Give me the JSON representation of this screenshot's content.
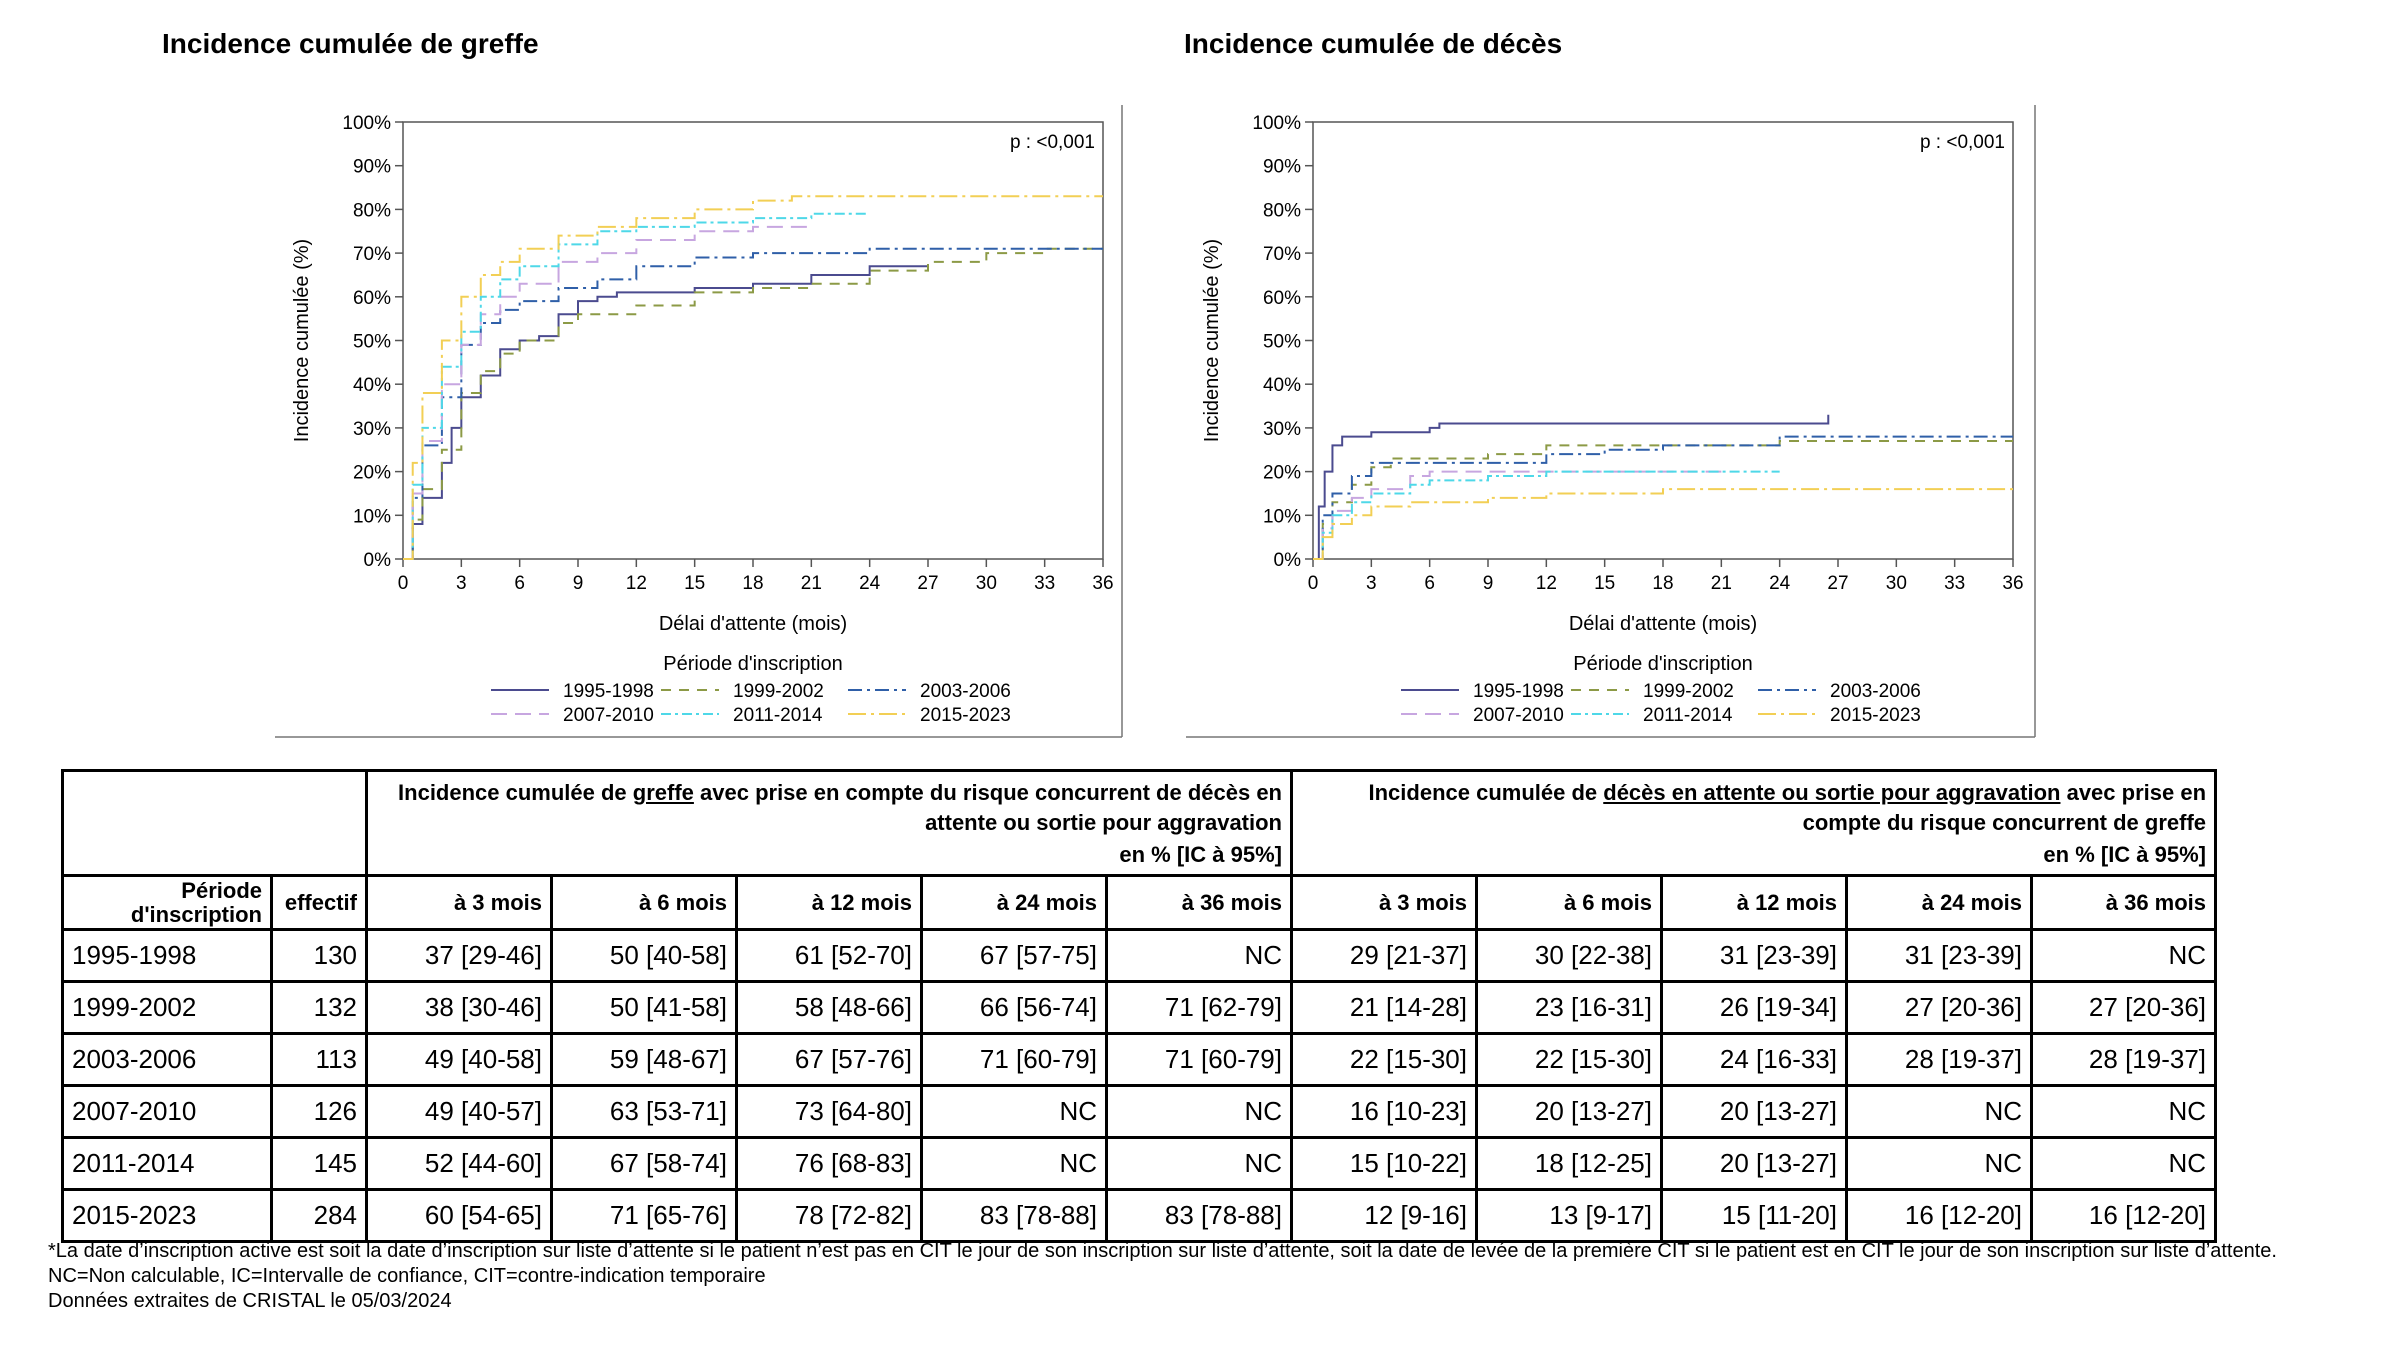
{
  "charts": [
    {
      "title": "Incidence cumulée de greffe",
      "pvalue": "p : <0,001",
      "ylabel": "Incidence cumulée (%)",
      "xlabel": "Délai d'attente (mois)",
      "legend_title": "Période d'inscription"
    },
    {
      "title": "Incidence cumulée de décès",
      "pvalue": "p : <0,001",
      "ylabel": "Incidence cumulée (%)",
      "xlabel": "Délai d'attente (mois)",
      "legend_title": "Période d'inscription"
    }
  ],
  "chart_data": [
    {
      "type": "line",
      "title": "Incidence cumulée de greffe",
      "xlabel": "Délai d'attente (mois)",
      "ylabel": "Incidence cumulée (%)",
      "xlim": [
        0,
        36
      ],
      "ylim": [
        0,
        100
      ],
      "xticks": [
        "0",
        "3",
        "6",
        "9",
        "12",
        "15",
        "18",
        "21",
        "24",
        "27",
        "30",
        "33",
        "36"
      ],
      "yticks": [
        "0%",
        "10%",
        "20%",
        "30%",
        "40%",
        "50%",
        "60%",
        "70%",
        "80%",
        "90%",
        "100%"
      ],
      "legend_position": "bottom",
      "series": [
        {
          "name": "1995-1998",
          "color": "#4b4b8f",
          "dash": "solid",
          "points": [
            [
              0,
              0
            ],
            [
              0.5,
              8
            ],
            [
              1,
              14
            ],
            [
              2,
              22
            ],
            [
              2.5,
              30
            ],
            [
              3,
              37
            ],
            [
              4,
              42
            ],
            [
              5,
              48
            ],
            [
              6,
              50
            ],
            [
              7,
              51
            ],
            [
              8,
              56
            ],
            [
              9,
              59
            ],
            [
              10,
              60
            ],
            [
              11,
              61
            ],
            [
              12,
              61
            ],
            [
              15,
              62
            ],
            [
              18,
              63
            ],
            [
              21,
              65
            ],
            [
              24,
              67
            ],
            [
              26,
              67
            ],
            [
              27,
              67
            ]
          ]
        },
        {
          "name": "1999-2002",
          "color": "#8c9a46",
          "dash": "10,8",
          "points": [
            [
              0,
              0
            ],
            [
              0.5,
              9
            ],
            [
              1,
              16
            ],
            [
              2,
              25
            ],
            [
              3,
              38
            ],
            [
              4,
              43
            ],
            [
              5,
              47
            ],
            [
              6,
              50
            ],
            [
              8,
              54
            ],
            [
              9,
              56
            ],
            [
              12,
              58
            ],
            [
              15,
              61
            ],
            [
              18,
              62
            ],
            [
              21,
              63
            ],
            [
              24,
              66
            ],
            [
              27,
              68
            ],
            [
              30,
              70
            ],
            [
              33,
              71
            ],
            [
              36,
              71
            ]
          ]
        },
        {
          "name": "2003-2006",
          "color": "#2f5fa8",
          "dash": "14,5,3,5",
          "points": [
            [
              0,
              0
            ],
            [
              0.5,
              14
            ],
            [
              1,
              26
            ],
            [
              2,
              37
            ],
            [
              3,
              49
            ],
            [
              4,
              54
            ],
            [
              5,
              57
            ],
            [
              6,
              59
            ],
            [
              8,
              62
            ],
            [
              10,
              64
            ],
            [
              12,
              67
            ],
            [
              15,
              69
            ],
            [
              18,
              70
            ],
            [
              21,
              70
            ],
            [
              24,
              71
            ],
            [
              27,
              71
            ],
            [
              30,
              71
            ],
            [
              33,
              71
            ],
            [
              36,
              71
            ]
          ]
        },
        {
          "name": "2007-2010",
          "color": "#c7a6e0",
          "dash": "16,8",
          "points": [
            [
              0,
              0
            ],
            [
              0.5,
              15
            ],
            [
              1,
              27
            ],
            [
              2,
              40
            ],
            [
              3,
              49
            ],
            [
              4,
              56
            ],
            [
              5,
              60
            ],
            [
              6,
              63
            ],
            [
              8,
              68
            ],
            [
              10,
              70
            ],
            [
              12,
              73
            ],
            [
              15,
              75
            ],
            [
              18,
              76
            ],
            [
              21,
              76
            ]
          ]
        },
        {
          "name": "2011-2014",
          "color": "#4ed8e8",
          "dash": "10,4,3,4",
          "points": [
            [
              0,
              0
            ],
            [
              0.5,
              17
            ],
            [
              1,
              30
            ],
            [
              2,
              44
            ],
            [
              3,
              52
            ],
            [
              4,
              60
            ],
            [
              5,
              64
            ],
            [
              6,
              67
            ],
            [
              8,
              72
            ],
            [
              10,
              75
            ],
            [
              12,
              76
            ],
            [
              15,
              77
            ],
            [
              18,
              78
            ],
            [
              21,
              79
            ],
            [
              24,
              79
            ]
          ]
        },
        {
          "name": "2015-2023",
          "color": "#f2cf55",
          "dash": "18,5,3,5",
          "points": [
            [
              0,
              0
            ],
            [
              0.5,
              22
            ],
            [
              1,
              38
            ],
            [
              2,
              50
            ],
            [
              3,
              60
            ],
            [
              4,
              65
            ],
            [
              5,
              68
            ],
            [
              6,
              71
            ],
            [
              8,
              74
            ],
            [
              10,
              76
            ],
            [
              12,
              78
            ],
            [
              15,
              80
            ],
            [
              18,
              82
            ],
            [
              20,
              83
            ],
            [
              24,
              83
            ],
            [
              27,
              83
            ],
            [
              30,
              83
            ],
            [
              33,
              83
            ],
            [
              36,
              83
            ]
          ]
        }
      ]
    },
    {
      "type": "line",
      "title": "Incidence cumulée de décès",
      "xlabel": "Délai d'attente (mois)",
      "ylabel": "Incidence cumulée (%)",
      "xlim": [
        0,
        36
      ],
      "ylim": [
        0,
        100
      ],
      "xticks": [
        "0",
        "3",
        "6",
        "9",
        "12",
        "15",
        "18",
        "21",
        "24",
        "27",
        "30",
        "33",
        "36"
      ],
      "yticks": [
        "0%",
        "10%",
        "20%",
        "30%",
        "40%",
        "50%",
        "60%",
        "70%",
        "80%",
        "90%",
        "100%"
      ],
      "legend_position": "bottom",
      "series": [
        {
          "name": "1995-1998",
          "color": "#4b4b8f",
          "dash": "solid",
          "points": [
            [
              0,
              0
            ],
            [
              0.3,
              12
            ],
            [
              0.6,
              20
            ],
            [
              1,
              26
            ],
            [
              1.5,
              28
            ],
            [
              3,
              29
            ],
            [
              6,
              30
            ],
            [
              6.5,
              31
            ],
            [
              12,
              31
            ],
            [
              18,
              31
            ],
            [
              24,
              31
            ],
            [
              26.5,
              31
            ],
            [
              26.5,
              33
            ]
          ]
        },
        {
          "name": "1999-2002",
          "color": "#8c9a46",
          "dash": "10,8",
          "points": [
            [
              0,
              0
            ],
            [
              0.5,
              8
            ],
            [
              1,
              13
            ],
            [
              2,
              17
            ],
            [
              3,
              21
            ],
            [
              4,
              23
            ],
            [
              6,
              23
            ],
            [
              9,
              24
            ],
            [
              12,
              26
            ],
            [
              18,
              26
            ],
            [
              24,
              27
            ],
            [
              27,
              27
            ],
            [
              30,
              27
            ],
            [
              36,
              27
            ]
          ]
        },
        {
          "name": "2003-2006",
          "color": "#2f5fa8",
          "dash": "14,5,3,5",
          "points": [
            [
              0,
              0
            ],
            [
              0.5,
              10
            ],
            [
              1,
              15
            ],
            [
              2,
              19
            ],
            [
              3,
              22
            ],
            [
              6,
              22
            ],
            [
              9,
              22
            ],
            [
              12,
              24
            ],
            [
              15,
              25
            ],
            [
              18,
              26
            ],
            [
              21,
              26
            ],
            [
              24,
              28
            ],
            [
              27,
              28
            ],
            [
              30,
              28
            ],
            [
              36,
              28
            ]
          ]
        },
        {
          "name": "2007-2010",
          "color": "#c7a6e0",
          "dash": "16,8",
          "points": [
            [
              0,
              0
            ],
            [
              0.5,
              7
            ],
            [
              1,
              11
            ],
            [
              2,
              14
            ],
            [
              3,
              16
            ],
            [
              5,
              19
            ],
            [
              6,
              20
            ],
            [
              9,
              20
            ],
            [
              12,
              20
            ],
            [
              15,
              20
            ],
            [
              18,
              20
            ],
            [
              21,
              20
            ]
          ]
        },
        {
          "name": "2011-2014",
          "color": "#4ed8e8",
          "dash": "10,4,3,4",
          "points": [
            [
              0,
              0
            ],
            [
              0.5,
              6
            ],
            [
              1,
              10
            ],
            [
              2,
              13
            ],
            [
              3,
              15
            ],
            [
              5,
              17
            ],
            [
              6,
              18
            ],
            [
              9,
              19
            ],
            [
              12,
              20
            ],
            [
              15,
              20
            ],
            [
              18,
              20
            ],
            [
              21,
              20
            ],
            [
              24,
              20
            ]
          ]
        },
        {
          "name": "2015-2023",
          "color": "#f2cf55",
          "dash": "18,5,3,5",
          "points": [
            [
              0,
              0
            ],
            [
              0.5,
              5
            ],
            [
              1,
              8
            ],
            [
              2,
              10
            ],
            [
              3,
              12
            ],
            [
              5,
              13
            ],
            [
              6,
              13
            ],
            [
              9,
              14
            ],
            [
              12,
              15
            ],
            [
              15,
              15
            ],
            [
              18,
              16
            ],
            [
              24,
              16
            ],
            [
              27,
              16
            ],
            [
              30,
              16
            ],
            [
              33,
              16
            ],
            [
              36,
              16
            ]
          ]
        }
      ]
    }
  ],
  "table": {
    "group1": {
      "pre": "Incidence cumulée de ",
      "u": "greffe",
      "post": " avec prise en compte du risque concurrent de décès en attente ou sortie pour aggravation",
      "unit": "en % [IC à 95%]"
    },
    "group2": {
      "pre": "Incidence cumulée de ",
      "u": "décès en attente ou sortie pour aggravation",
      "post": " avec prise en compte du risque concurrent de greffe",
      "unit": "en % [IC à 95%]"
    },
    "col_period": "Période d'inscription",
    "col_n": "effectif",
    "col_times": [
      "à 3 mois",
      "à 6 mois",
      "à 12 mois",
      "à 24 mois",
      "à 36 mois"
    ],
    "rows": [
      {
        "period": "1995-1998",
        "n": "130",
        "greffe": [
          "37 [29-46]",
          "50 [40-58]",
          "61 [52-70]",
          "67 [57-75]",
          "NC"
        ],
        "deces": [
          "29 [21-37]",
          "30 [22-38]",
          "31 [23-39]",
          "31 [23-39]",
          "NC"
        ]
      },
      {
        "period": "1999-2002",
        "n": "132",
        "greffe": [
          "38 [30-46]",
          "50 [41-58]",
          "58 [48-66]",
          "66 [56-74]",
          "71 [62-79]"
        ],
        "deces": [
          "21 [14-28]",
          "23 [16-31]",
          "26 [19-34]",
          "27 [20-36]",
          "27 [20-36]"
        ]
      },
      {
        "period": "2003-2006",
        "n": "113",
        "greffe": [
          "49 [40-58]",
          "59 [48-67]",
          "67 [57-76]",
          "71 [60-79]",
          "71 [60-79]"
        ],
        "deces": [
          "22 [15-30]",
          "22 [15-30]",
          "24 [16-33]",
          "28 [19-37]",
          "28 [19-37]"
        ]
      },
      {
        "period": "2007-2010",
        "n": "126",
        "greffe": [
          "49 [40-57]",
          "63 [53-71]",
          "73 [64-80]",
          "NC",
          "NC"
        ],
        "deces": [
          "16 [10-23]",
          "20 [13-27]",
          "20 [13-27]",
          "NC",
          "NC"
        ]
      },
      {
        "period": "2011-2014",
        "n": "145",
        "greffe": [
          "52 [44-60]",
          "67 [58-74]",
          "76 [68-83]",
          "NC",
          "NC"
        ],
        "deces": [
          "15 [10-22]",
          "18 [12-25]",
          "20 [13-27]",
          "NC",
          "NC"
        ]
      },
      {
        "period": "2015-2023",
        "n": "284",
        "greffe": [
          "60 [54-65]",
          "71 [65-76]",
          "78 [72-82]",
          "83 [78-88]",
          "83 [78-88]"
        ],
        "deces": [
          "12 [9-16]",
          "13 [9-17]",
          "15 [11-20]",
          "16 [12-20]",
          "16 [12-20]"
        ]
      }
    ]
  },
  "footnotes": [
    "*La date d’inscription active est soit la date d’inscription sur liste d’attente si le patient n’est pas en CIT le jour de son inscription sur liste d’attente, soit la date de levée de la première CIT si le patient est en CIT le jour de son inscription sur liste d’attente.",
    "NC=Non calculable, IC=Intervalle de confiance, CIT=contre-indication temporaire",
    "Données extraites de CRISTAL le 05/03/2024"
  ]
}
